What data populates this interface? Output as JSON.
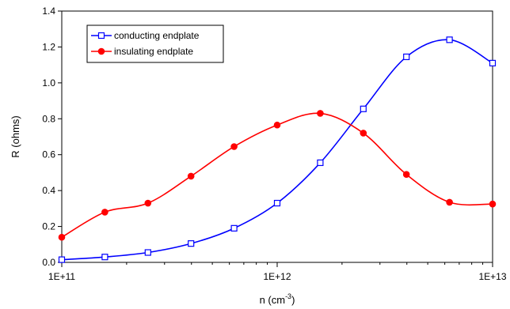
{
  "chart_data": {
    "type": "line",
    "xlabel_main": "n (cm",
    "xlabel_sup": "-3",
    "xlabel_tail": ")",
    "ylabel": "R (ohms)",
    "x_scale": "log",
    "xlim": [
      100000000000.0,
      10000000000000.0
    ],
    "ylim": [
      0,
      1.4
    ],
    "grid": false,
    "legend_position": "top-left",
    "x_ticks": [
      {
        "value": 100000000000.0,
        "label": "1E+11"
      },
      {
        "value": 1000000000000.0,
        "label": "1E+12"
      },
      {
        "value": 10000000000000.0,
        "label": "1E+13"
      }
    ],
    "y_ticks": [
      {
        "value": 0.0,
        "label": "0.0"
      },
      {
        "value": 0.2,
        "label": "0.2"
      },
      {
        "value": 0.4,
        "label": "0.4"
      },
      {
        "value": 0.6,
        "label": "0.6"
      },
      {
        "value": 0.8,
        "label": "0.8"
      },
      {
        "value": 1.0,
        "label": "1.0"
      },
      {
        "value": 1.2,
        "label": "1.2"
      },
      {
        "value": 1.4,
        "label": "1.4"
      }
    ],
    "series": [
      {
        "name": "conducting endplate",
        "color": "#0000ff",
        "marker": "open-square",
        "points": [
          [
            100000000000.0,
            0.015
          ],
          [
            158500000000.0,
            0.03
          ],
          [
            251200000000.0,
            0.055
          ],
          [
            398100000000.0,
            0.105
          ],
          [
            631000000000.0,
            0.19
          ],
          [
            1000000000000.0,
            0.33
          ],
          [
            1585000000000.0,
            0.555
          ],
          [
            2512000000000.0,
            0.855
          ],
          [
            3981000000000.0,
            1.145
          ],
          [
            6310000000000.0,
            1.24
          ],
          [
            10000000000000.0,
            1.11
          ]
        ]
      },
      {
        "name": "insulating endplate",
        "color": "#ff0000",
        "marker": "filled-circle",
        "points": [
          [
            100000000000.0,
            0.14
          ],
          [
            158500000000.0,
            0.28
          ],
          [
            251200000000.0,
            0.33
          ],
          [
            398100000000.0,
            0.48
          ],
          [
            631000000000.0,
            0.645
          ],
          [
            1000000000000.0,
            0.765
          ],
          [
            1585000000000.0,
            0.83
          ],
          [
            2512000000000.0,
            0.72
          ],
          [
            3981000000000.0,
            0.49
          ],
          [
            6310000000000.0,
            0.335
          ],
          [
            10000000000000.0,
            0.325
          ]
        ]
      }
    ]
  }
}
